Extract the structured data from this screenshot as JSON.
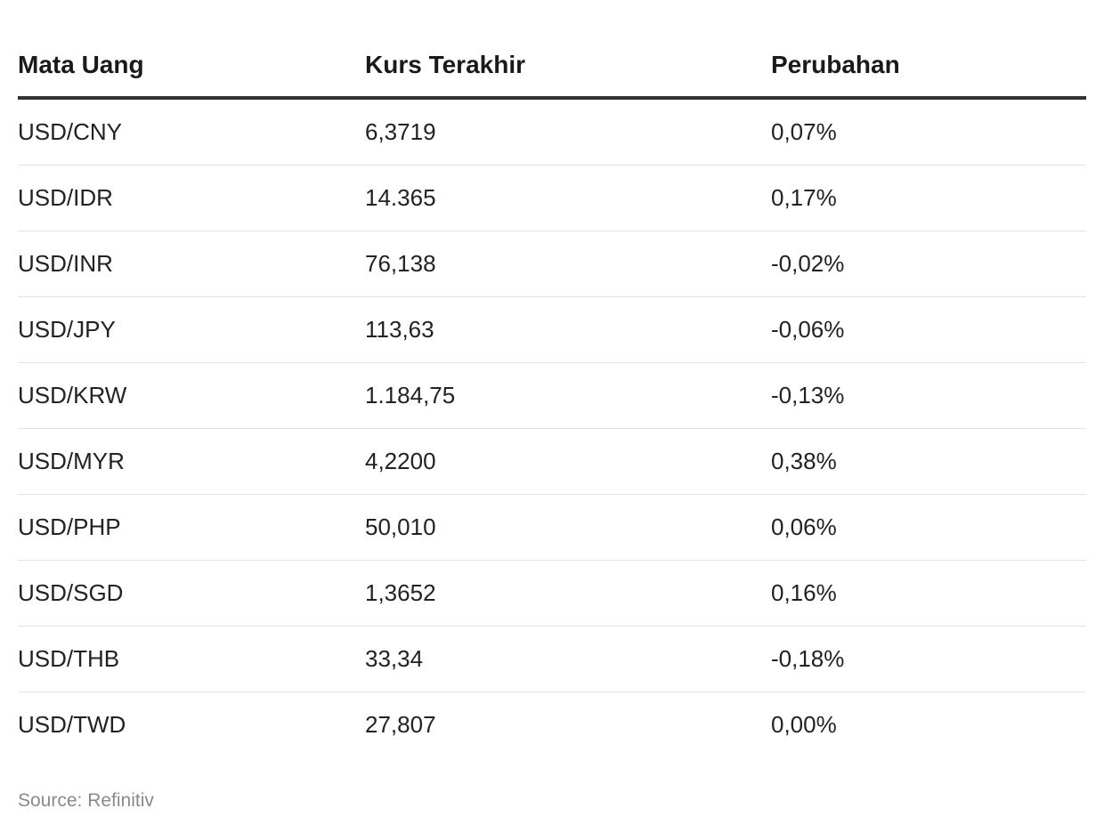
{
  "chart_data": {
    "type": "table",
    "columns": [
      "Mata Uang",
      "Kurs Terakhir",
      "Perubahan"
    ],
    "rows": [
      [
        "USD/CNY",
        "6,3719",
        "0,07%"
      ],
      [
        "USD/IDR",
        "14.365",
        "0,17%"
      ],
      [
        "USD/INR",
        "76,138",
        "-0,02%"
      ],
      [
        "USD/JPY",
        "113,63",
        "-0,06%"
      ],
      [
        "USD/KRW",
        "1.184,75",
        "-0,13%"
      ],
      [
        "USD/MYR",
        "4,2200",
        "0,38%"
      ],
      [
        "USD/PHP",
        "50,010",
        "0,06%"
      ],
      [
        "USD/SGD",
        "1,3652",
        "0,16%"
      ],
      [
        "USD/THB",
        "33,34",
        "-0,18%"
      ],
      [
        "USD/TWD",
        "27,807",
        "0,00%"
      ]
    ],
    "source": "Source: Refinitiv"
  }
}
